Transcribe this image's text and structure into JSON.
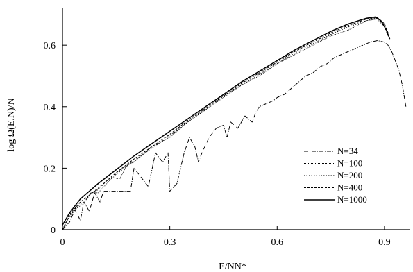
{
  "chart_data": {
    "type": "line",
    "title": "",
    "xlabel": "E/NN*",
    "ylabel": "log Ω(E,N)/N",
    "xlim": [
      0,
      0.97
    ],
    "ylim": [
      0,
      0.72
    ],
    "xticks": [
      {
        "value": 0,
        "label": "0"
      },
      {
        "value": 0.3,
        "label": "0.3"
      },
      {
        "value": 0.6,
        "label": "0.6"
      },
      {
        "value": 0.9,
        "label": "0.9"
      }
    ],
    "yticks": [
      {
        "value": 0,
        "label": "0"
      },
      {
        "value": 0.2,
        "label": "0.2"
      },
      {
        "value": 0.4,
        "label": "0.4"
      },
      {
        "value": 0.6,
        "label": "0.6"
      }
    ],
    "grid": false,
    "legend_position": "bottom-right",
    "series": [
      {
        "name": "N=34",
        "style": "dashdot",
        "x": [
          0,
          0.02,
          0.035,
          0.05,
          0.06,
          0.075,
          0.09,
          0.105,
          0.115,
          0.13,
          0.15,
          0.17,
          0.19,
          0.2,
          0.22,
          0.24,
          0.26,
          0.28,
          0.295,
          0.3,
          0.32,
          0.34,
          0.355,
          0.37,
          0.38,
          0.39,
          0.41,
          0.43,
          0.45,
          0.46,
          0.47,
          0.49,
          0.51,
          0.53,
          0.54,
          0.55,
          0.57,
          0.59,
          0.6,
          0.62,
          0.64,
          0.66,
          0.68,
          0.7,
          0.72,
          0.74,
          0.76,
          0.78,
          0.8,
          0.82,
          0.84,
          0.86,
          0.88,
          0.9,
          0.91,
          0.92,
          0.93,
          0.94,
          0.95,
          0.96
        ],
        "y": [
          0,
          0.025,
          0.065,
          0.03,
          0.09,
          0.06,
          0.12,
          0.09,
          0.125,
          0.125,
          0.125,
          0.125,
          0.125,
          0.2,
          0.17,
          0.14,
          0.25,
          0.22,
          0.25,
          0.125,
          0.15,
          0.25,
          0.3,
          0.27,
          0.22,
          0.25,
          0.3,
          0.33,
          0.34,
          0.3,
          0.35,
          0.33,
          0.37,
          0.35,
          0.38,
          0.4,
          0.41,
          0.42,
          0.43,
          0.44,
          0.46,
          0.48,
          0.5,
          0.51,
          0.53,
          0.54,
          0.56,
          0.57,
          0.58,
          0.59,
          0.6,
          0.61,
          0.615,
          0.61,
          0.6,
          0.58,
          0.55,
          0.52,
          0.47,
          0.4
        ]
      },
      {
        "name": "N=100",
        "style": "dotted-fine",
        "x": [
          0,
          0.02,
          0.04,
          0.06,
          0.08,
          0.1,
          0.12,
          0.14,
          0.16,
          0.18,
          0.2,
          0.25,
          0.3,
          0.35,
          0.4,
          0.45,
          0.5,
          0.55,
          0.6,
          0.65,
          0.7,
          0.75,
          0.8,
          0.85,
          0.88,
          0.9,
          0.91
        ],
        "y": [
          0,
          0.045,
          0.07,
          0.085,
          0.12,
          0.12,
          0.145,
          0.17,
          0.165,
          0.21,
          0.22,
          0.27,
          0.3,
          0.35,
          0.39,
          0.43,
          0.47,
          0.5,
          0.54,
          0.57,
          0.6,
          0.63,
          0.65,
          0.68,
          0.685,
          0.66,
          0.63
        ]
      },
      {
        "name": "N=200",
        "style": "dotted",
        "x": [
          0,
          0.02,
          0.04,
          0.06,
          0.08,
          0.1,
          0.12,
          0.15,
          0.2,
          0.25,
          0.3,
          0.35,
          0.4,
          0.45,
          0.5,
          0.55,
          0.6,
          0.65,
          0.7,
          0.75,
          0.8,
          0.85,
          0.88,
          0.9,
          0.91
        ],
        "y": [
          0,
          0.04,
          0.075,
          0.09,
          0.12,
          0.13,
          0.155,
          0.18,
          0.225,
          0.265,
          0.305,
          0.35,
          0.39,
          0.435,
          0.47,
          0.505,
          0.54,
          0.575,
          0.605,
          0.635,
          0.66,
          0.68,
          0.688,
          0.665,
          0.635
        ]
      },
      {
        "name": "N=400",
        "style": "dashed",
        "x": [
          0,
          0.02,
          0.05,
          0.1,
          0.15,
          0.2,
          0.25,
          0.3,
          0.35,
          0.4,
          0.45,
          0.5,
          0.55,
          0.6,
          0.65,
          0.7,
          0.75,
          0.8,
          0.85,
          0.88,
          0.9,
          0.91
        ],
        "y": [
          0,
          0.05,
          0.09,
          0.135,
          0.185,
          0.23,
          0.27,
          0.31,
          0.355,
          0.395,
          0.435,
          0.475,
          0.51,
          0.545,
          0.58,
          0.61,
          0.64,
          0.665,
          0.685,
          0.69,
          0.67,
          0.64
        ]
      },
      {
        "name": "N=1000",
        "style": "solid",
        "x": [
          0,
          0.02,
          0.05,
          0.1,
          0.15,
          0.2,
          0.25,
          0.3,
          0.35,
          0.4,
          0.45,
          0.5,
          0.55,
          0.6,
          0.65,
          0.7,
          0.75,
          0.8,
          0.85,
          0.875,
          0.89,
          0.905,
          0.915
        ],
        "y": [
          0.015,
          0.055,
          0.1,
          0.15,
          0.195,
          0.24,
          0.28,
          0.32,
          0.36,
          0.4,
          0.44,
          0.48,
          0.515,
          0.55,
          0.585,
          0.615,
          0.645,
          0.67,
          0.688,
          0.692,
          0.68,
          0.65,
          0.62
        ]
      }
    ]
  }
}
